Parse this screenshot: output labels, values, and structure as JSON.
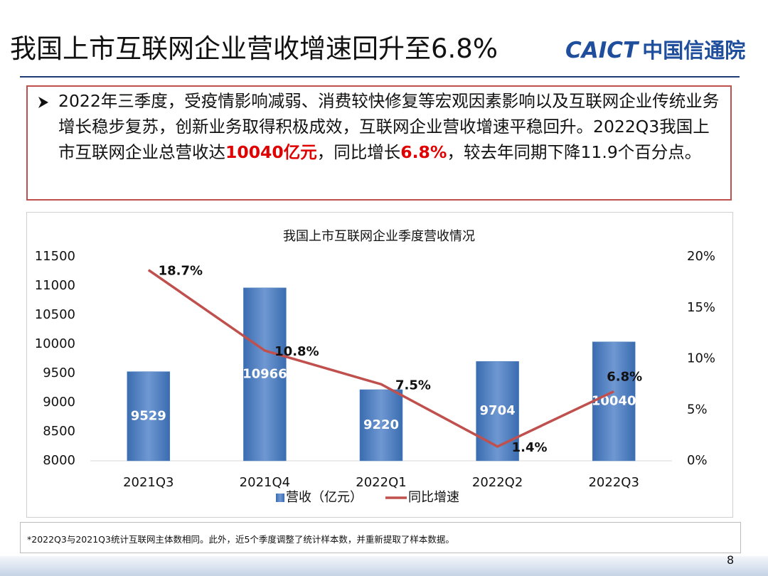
{
  "header": {
    "title": "我国上市互联网企业营收增速回升至6.8%",
    "logo_en": "CAICT",
    "logo_cn": "中国信通院"
  },
  "summary": {
    "segments": [
      {
        "text": "2022年三季度，受疫情影响减弱、消费较快修复等宏观因素影响以及互联网企业传统业务增长稳步复苏，创新业务取得积极成效，互联网企业营收增速平稳回升。2022Q3我国上市互联网企业总营收达",
        "highlight": false
      },
      {
        "text": "10040亿元",
        "highlight": true
      },
      {
        "text": "，同比增长",
        "highlight": false
      },
      {
        "text": "6.8%",
        "highlight": true
      },
      {
        "text": "，较去年同期下降11.9个百分点。",
        "highlight": false
      }
    ]
  },
  "chart_data": {
    "type": "bar-line",
    "title": "我国上市互联网企业季度营收情况",
    "categories": [
      "2021Q3",
      "2021Q4",
      "2022Q1",
      "2022Q2",
      "2022Q3"
    ],
    "series": [
      {
        "name": "营收（亿元）",
        "type": "bar",
        "color": "#4f81bd",
        "values": [
          9529,
          10966,
          9220,
          9704,
          10040
        ]
      },
      {
        "name": "同比增速",
        "type": "line",
        "color": "#c0504d",
        "axis": "y2",
        "values": [
          18.7,
          10.8,
          7.5,
          1.4,
          6.8
        ],
        "value_labels": [
          "18.7%",
          "10.8%",
          "7.5%",
          "1.4%",
          "6.8%"
        ]
      }
    ],
    "ylim": [
      8000,
      11500
    ],
    "yticks": [
      8000,
      8500,
      9000,
      9500,
      10000,
      10500,
      11000,
      11500
    ],
    "y2lim": [
      0,
      20
    ],
    "y2ticks": [
      {
        "value": 0,
        "label": "0%"
      },
      {
        "value": 5,
        "label": "5%"
      },
      {
        "value": 10,
        "label": "10%"
      },
      {
        "value": 15,
        "label": "15%"
      },
      {
        "value": 20,
        "label": "20%"
      }
    ],
    "grid": false,
    "legend": "bottom"
  },
  "footnote": "*2022Q3与2021Q3统计互联网主体数相同。此外，近5个季度调整了统计样本数，并重新提取了样本数据。",
  "page_number": "8"
}
